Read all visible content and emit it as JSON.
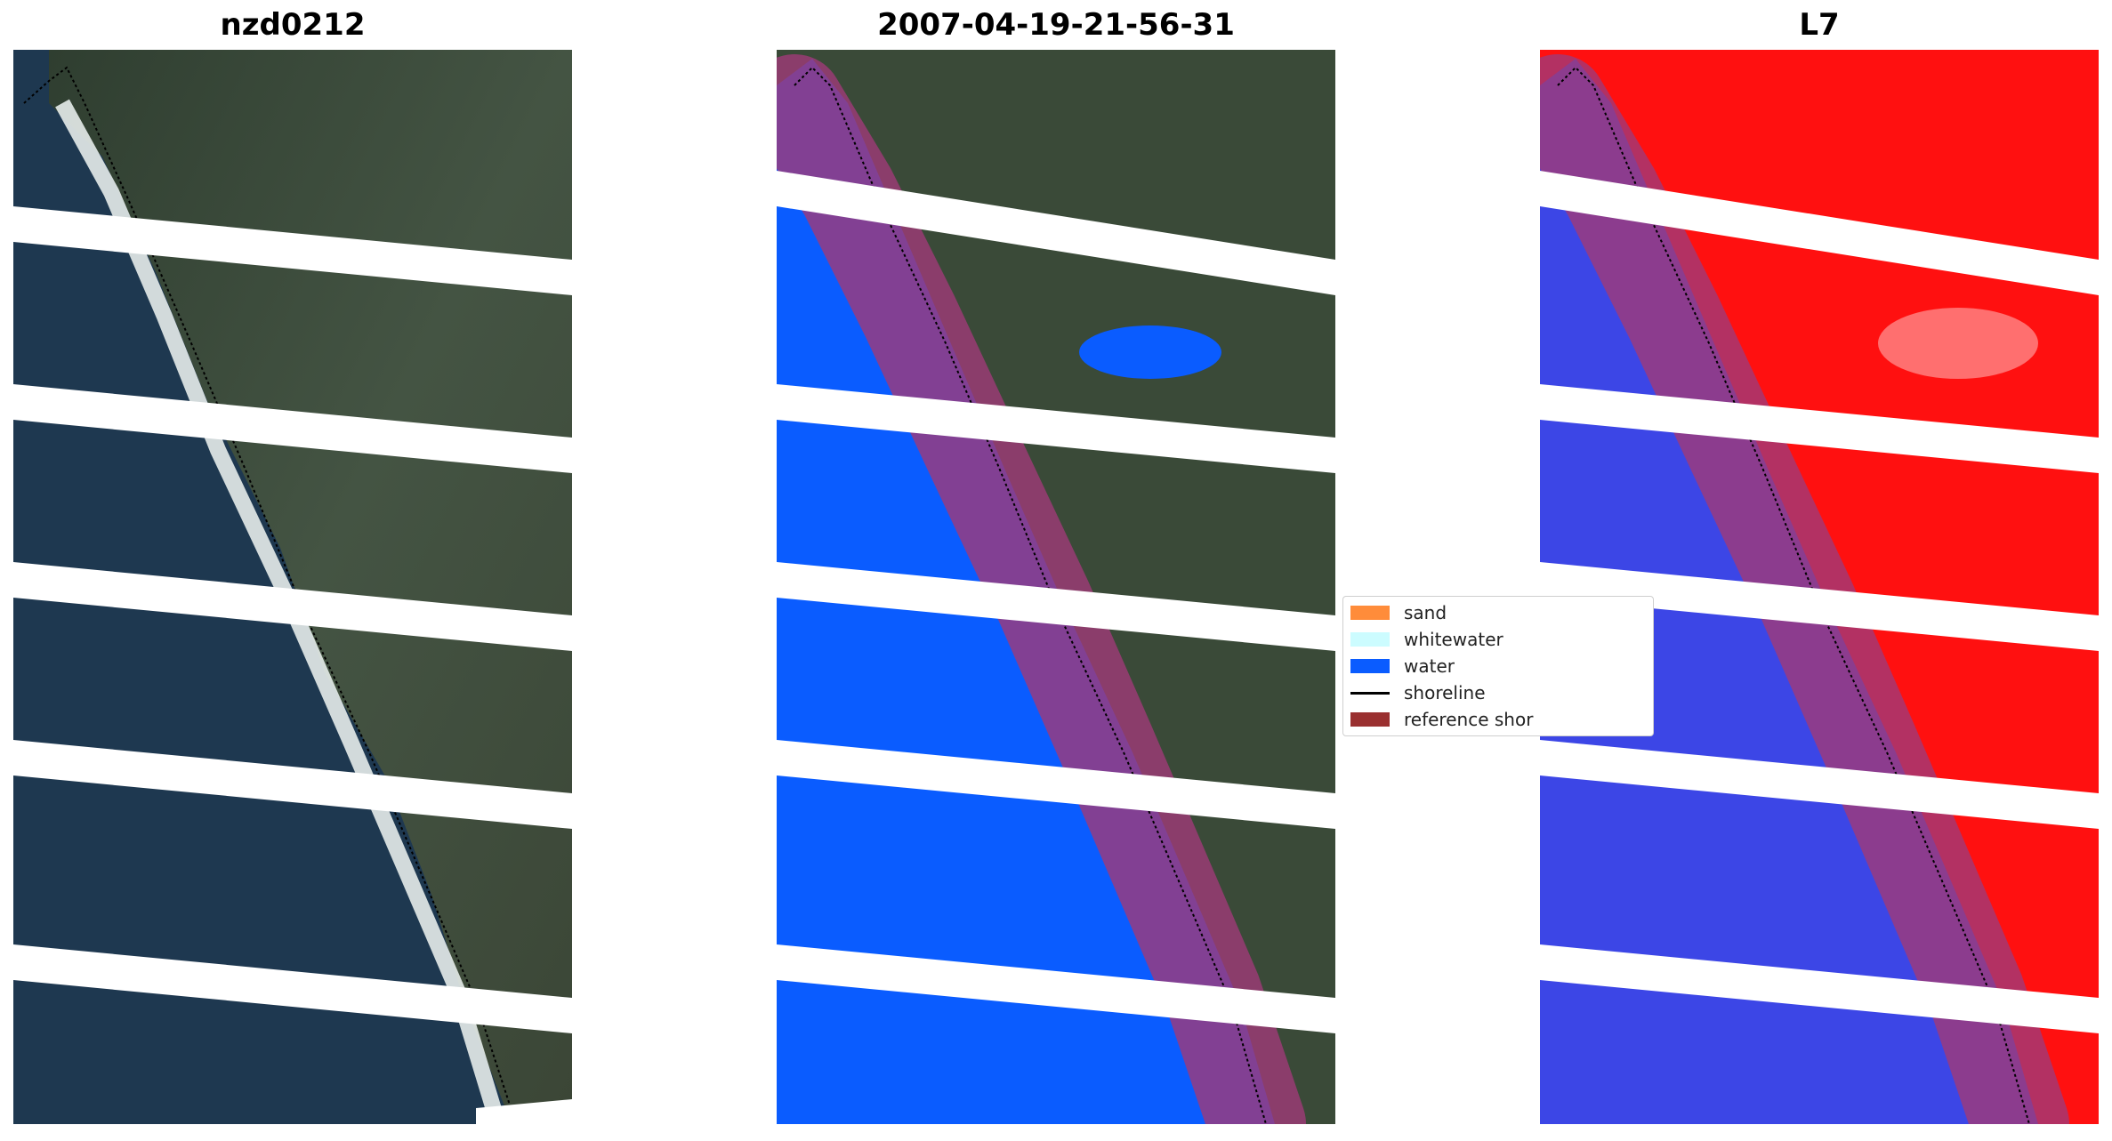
{
  "panels": [
    {
      "title": "nzd0212"
    },
    {
      "title": "2007-04-19-21-56-31"
    },
    {
      "title": "L7"
    }
  ],
  "legend": {
    "items": [
      {
        "label": "sand",
        "color": "#ff8c3a",
        "kind": "patch"
      },
      {
        "label": "whitewater",
        "color": "#ccfcff",
        "kind": "patch"
      },
      {
        "label": "water",
        "color": "#0a5cff",
        "kind": "patch"
      },
      {
        "label": "shoreline",
        "color": "#000000",
        "kind": "line"
      },
      {
        "label": "reference shor",
        "color": "#9a3030",
        "kind": "patch"
      }
    ]
  },
  "colors": {
    "land": "#3a4a38",
    "ocean": "#1c3448",
    "water_class": "#0a5cff",
    "land_index": "#ff1010",
    "water_index": "#3c46e6",
    "reference_buffer": "#a03a78"
  }
}
